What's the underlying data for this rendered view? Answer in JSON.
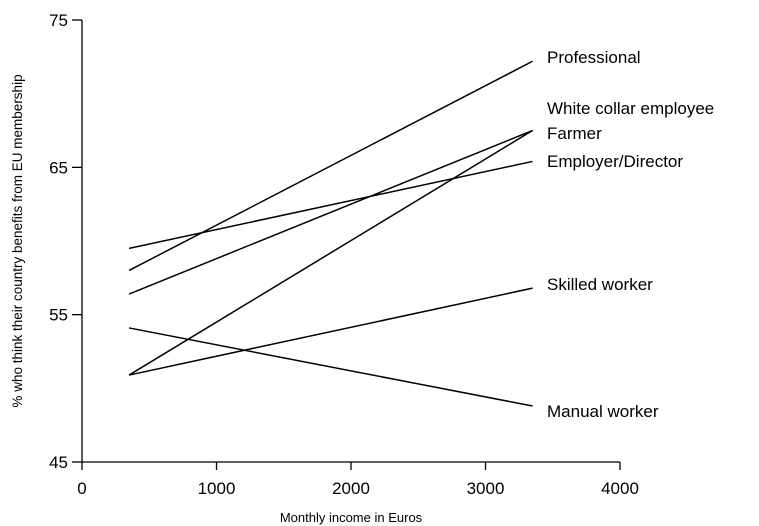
{
  "chart_data": {
    "type": "line",
    "xlabel": "Monthly income in Euros",
    "ylabel": "% who think their country benefits from EU membership",
    "xlim": [
      0,
      4000
    ],
    "ylim": [
      45,
      75
    ],
    "xticks": [
      0,
      1000,
      2000,
      3000,
      4000
    ],
    "yticks": [
      45,
      55,
      65,
      75
    ],
    "grid": false,
    "series": [
      {
        "name": "Professional",
        "x": [
          350,
          3350
        ],
        "y": [
          58.0,
          72.2
        ]
      },
      {
        "name": "White collar employee",
        "x": [
          350,
          3350
        ],
        "y": [
          56.4,
          67.5
        ]
      },
      {
        "name": "Farmer",
        "x": [
          350,
          3350
        ],
        "y": [
          50.9,
          67.5
        ]
      },
      {
        "name": "Employer/Director",
        "x": [
          350,
          3350
        ],
        "y": [
          59.5,
          65.4
        ]
      },
      {
        "name": "Skilled worker",
        "x": [
          350,
          3350
        ],
        "y": [
          50.9,
          56.8
        ]
      },
      {
        "name": "Manual worker",
        "x": [
          350,
          3350
        ],
        "y": [
          54.1,
          48.8
        ]
      }
    ]
  }
}
